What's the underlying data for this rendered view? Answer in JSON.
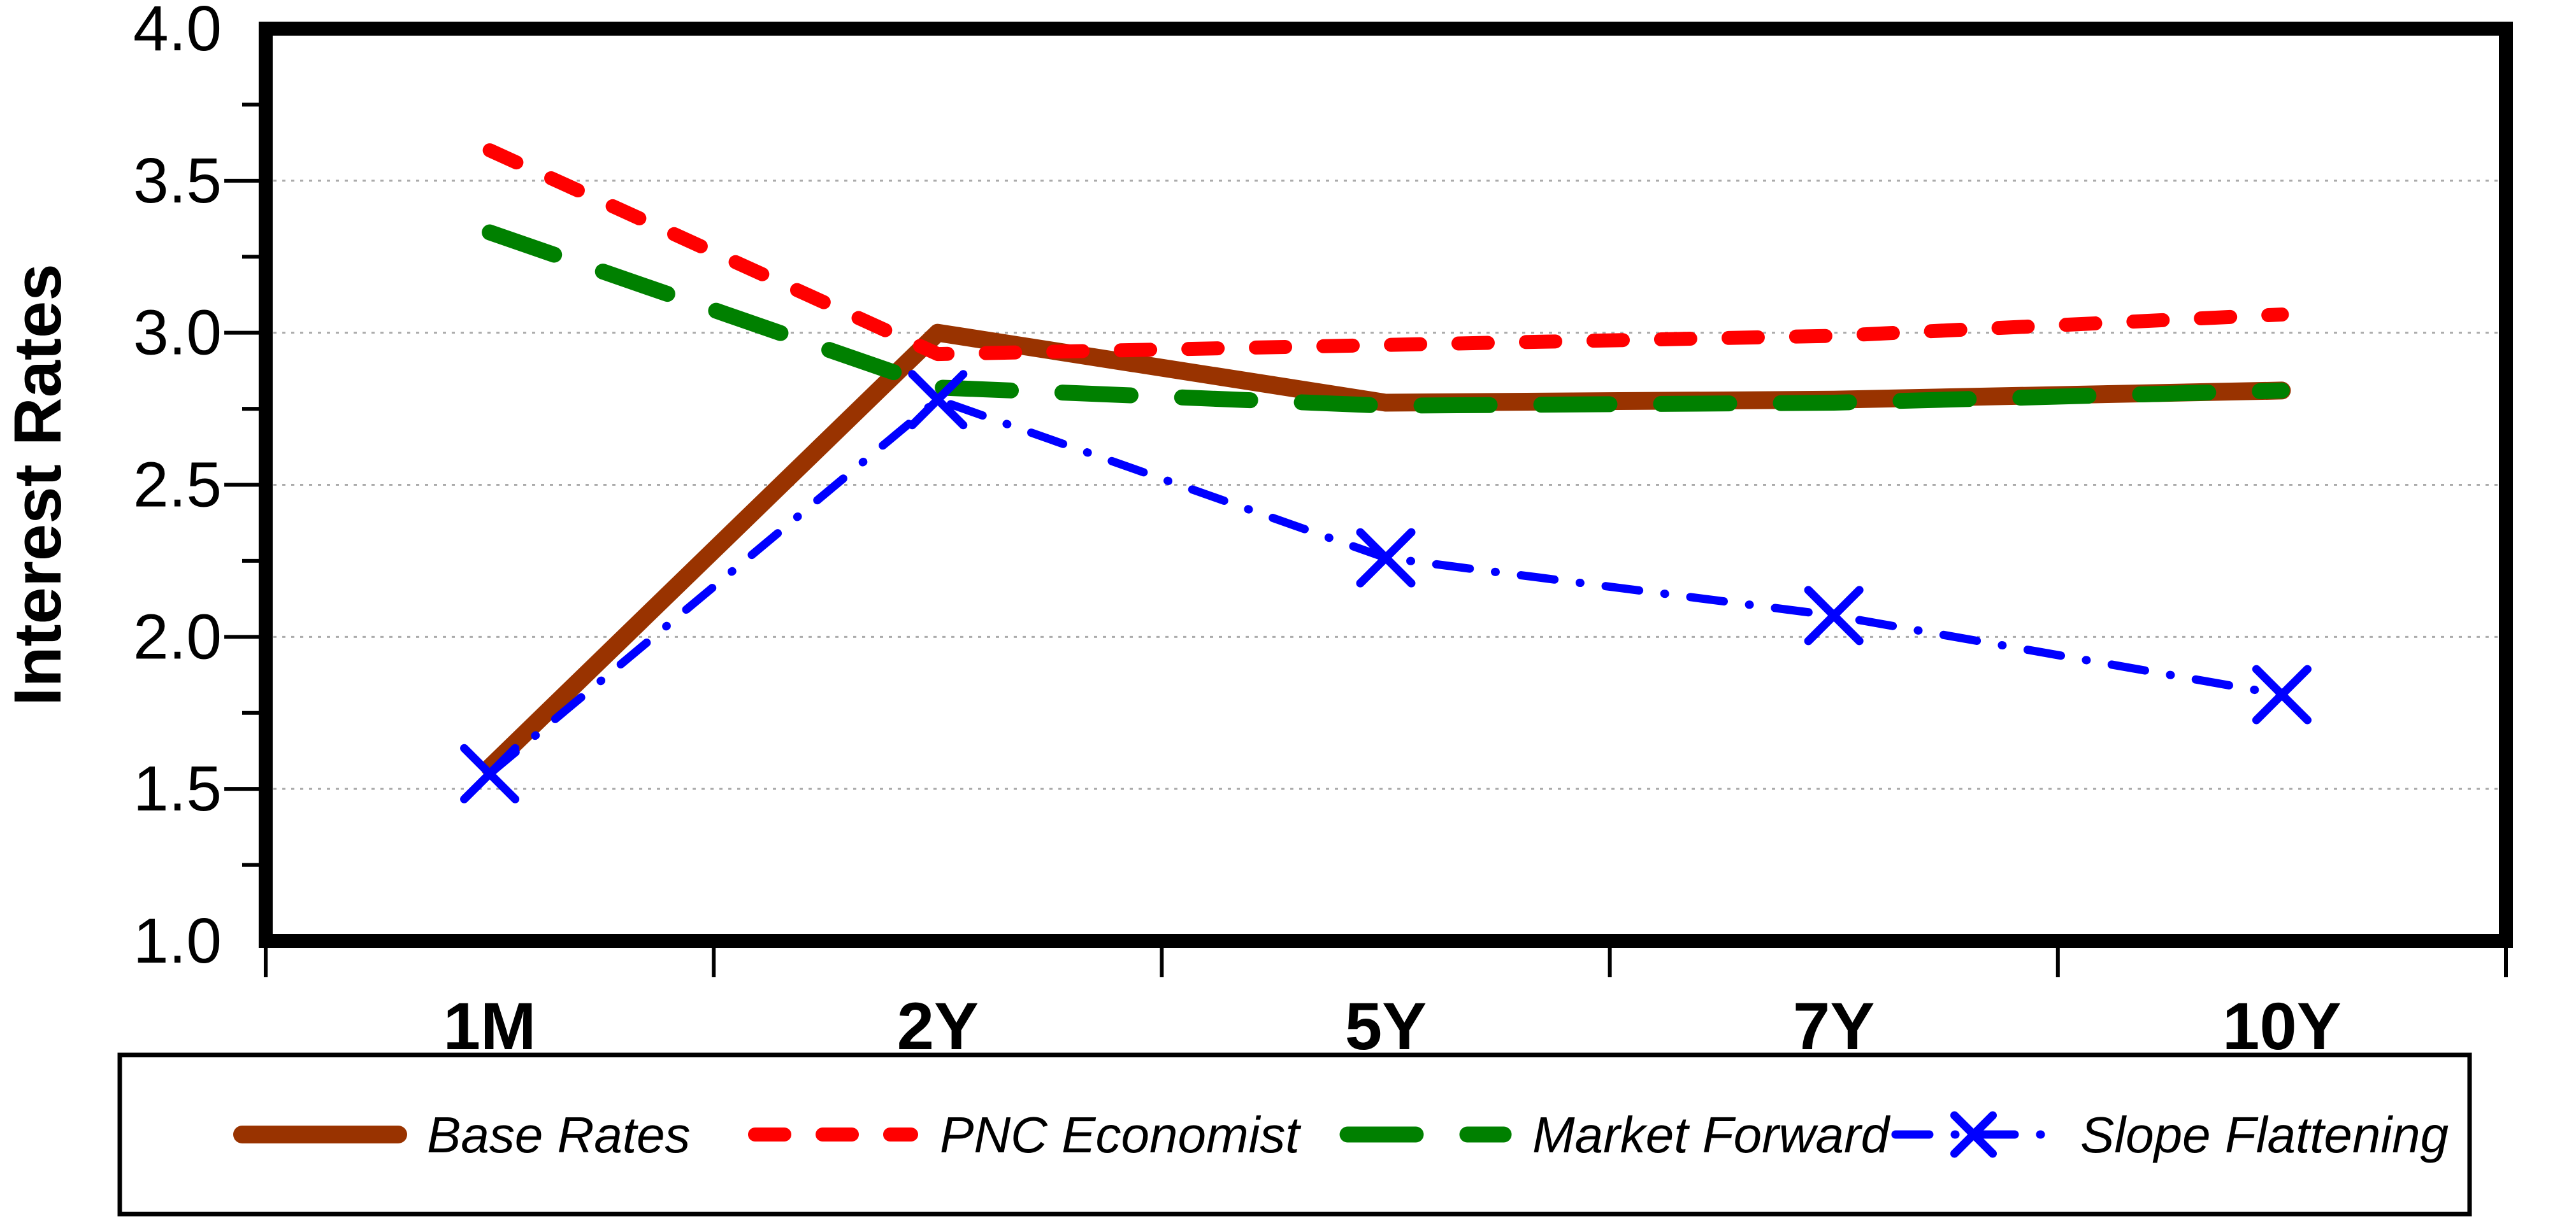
{
  "chart_data": {
    "type": "line",
    "title": "",
    "xlabel": "",
    "ylabel": "Interest Rates",
    "categories": [
      "1M",
      "2Y",
      "5Y",
      "7Y",
      "10Y"
    ],
    "ylim": [
      1.0,
      4.0
    ],
    "y_major_step": 0.5,
    "y_minor_step": 0.25,
    "y_tick_labels": [
      "4.0",
      "3.5",
      "3.0",
      "2.5",
      "2.0",
      "1.5",
      "1.0"
    ],
    "grid": "horizontal dotted gridlines at each 0.5 step",
    "legend_position": "bottom",
    "series": [
      {
        "name": "Base Rates",
        "color": "#993300",
        "style": "solid",
        "marker": "none",
        "values": [
          1.57,
          3.0,
          2.77,
          2.78,
          2.81
        ]
      },
      {
        "name": "PNC Economist",
        "color": "#ff0000",
        "style": "dash",
        "marker": "none",
        "values": [
          3.6,
          2.93,
          2.96,
          2.99,
          3.06
        ]
      },
      {
        "name": "Market Forward",
        "color": "#008000",
        "style": "long-dash",
        "marker": "none",
        "values": [
          3.33,
          2.82,
          2.76,
          2.77,
          2.81
        ]
      },
      {
        "name": "Slope Flattening",
        "color": "#0000ff",
        "style": "dash-dot",
        "marker": "x",
        "values": [
          1.55,
          2.78,
          2.26,
          2.07,
          1.81
        ]
      }
    ]
  },
  "colors": {
    "background": "#ffffff",
    "axis_frame": "#000000",
    "gridline": "#ababab",
    "tick": "#000000",
    "legend_border": "#000000",
    "legend_fill": "#ffffff"
  }
}
